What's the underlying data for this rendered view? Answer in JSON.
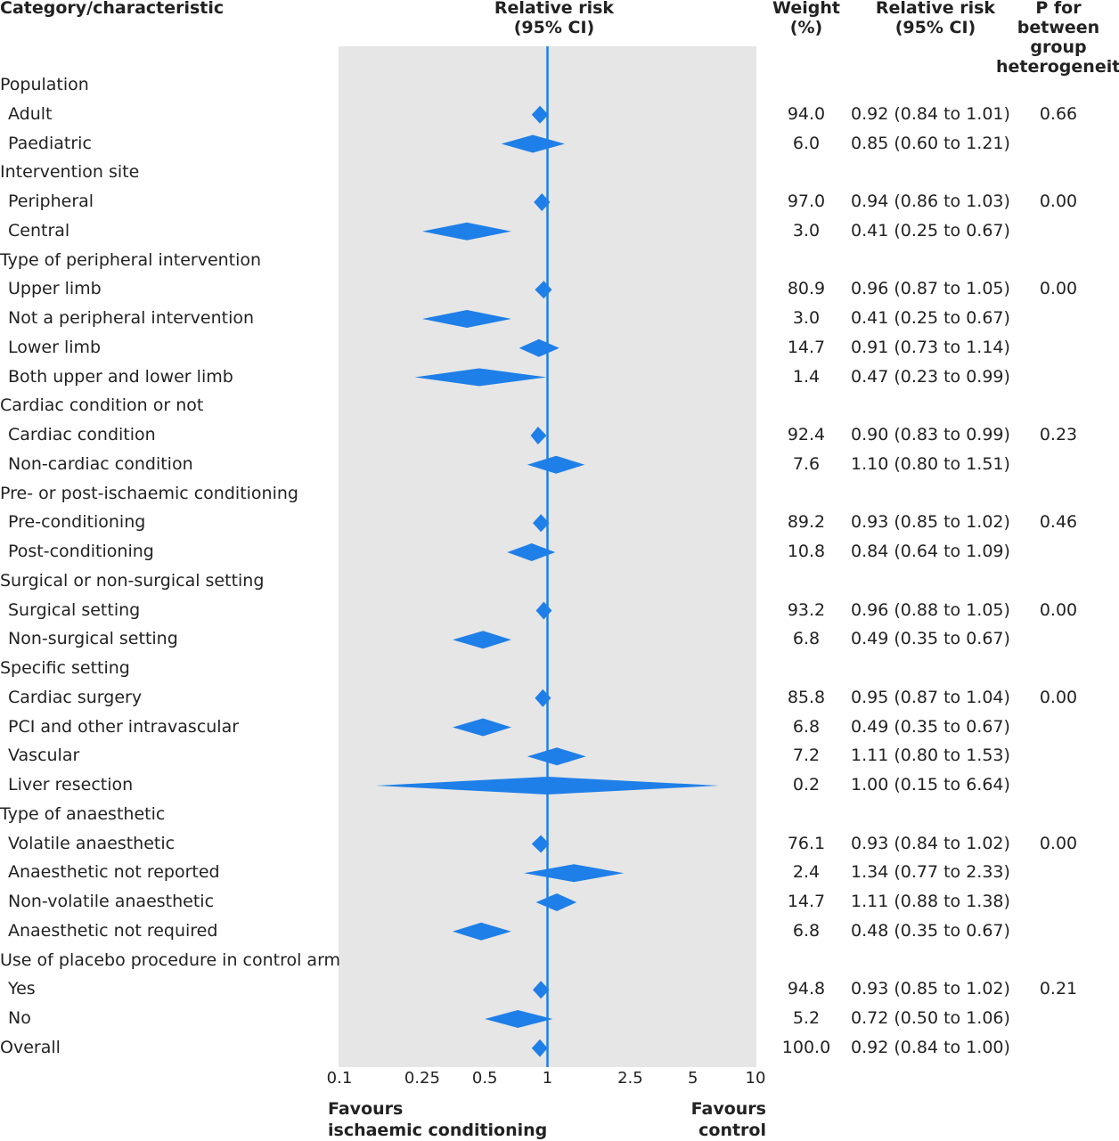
{
  "headers": {
    "category": "Category/characteristic",
    "rr_plot": [
      "Relative risk",
      "(95% CI)"
    ],
    "weight": [
      "Weight",
      "(%)"
    ],
    "rr_col": [
      "Relative risk",
      "(95% CI)"
    ],
    "p_het": [
      "P for",
      "between group",
      "heterogeneity"
    ]
  },
  "colors": {
    "diamond": "#1f7fe8",
    "reference_line": "#1f7fe8",
    "plot_background": "#e6e6e6",
    "text": "#222222"
  },
  "axis": {
    "scale": "log",
    "ticks": [
      "0.1",
      "0.25",
      "0.5",
      "1",
      "2.5",
      "5",
      "10"
    ],
    "favours_left": [
      "Favours",
      "ischaemic conditioning"
    ],
    "favours_right": [
      "Favours",
      "control"
    ]
  },
  "rows": [
    {
      "type": "group",
      "label": "Population"
    },
    {
      "type": "item",
      "label": "Adult",
      "weight": "94.0",
      "rr_text": "0.92 (0.84 to 1.01)",
      "p": "0.66"
    },
    {
      "type": "item",
      "label": "Paediatric",
      "weight": "6.0",
      "rr_text": "0.85 (0.60 to 1.21)",
      "p": ""
    },
    {
      "type": "group",
      "label": "Intervention site"
    },
    {
      "type": "item",
      "label": "Peripheral",
      "weight": "97.0",
      "rr_text": "0.94 (0.86 to 1.03)",
      "p": "0.00"
    },
    {
      "type": "item",
      "label": "Central",
      "weight": "3.0",
      "rr_text": "0.41 (0.25 to 0.67)",
      "p": ""
    },
    {
      "type": "group",
      "label": "Type of peripheral intervention"
    },
    {
      "type": "item",
      "label": "Upper limb",
      "weight": "80.9",
      "rr_text": "0.96 (0.87 to 1.05)",
      "p": "0.00"
    },
    {
      "type": "item",
      "label": "Not a peripheral intervention",
      "weight": "3.0",
      "rr_text": "0.41 (0.25 to 0.67)",
      "p": ""
    },
    {
      "type": "item",
      "label": "Lower limb",
      "weight": "14.7",
      "rr_text": "0.91 (0.73 to 1.14)",
      "p": ""
    },
    {
      "type": "item",
      "label": "Both upper and lower limb",
      "weight": "1.4",
      "rr_text": "0.47 (0.23 to 0.99)",
      "p": ""
    },
    {
      "type": "group",
      "label": "Cardiac condition or not"
    },
    {
      "type": "item",
      "label": "Cardiac condition",
      "weight": "92.4",
      "rr_text": "0.90 (0.83 to 0.99)",
      "p": "0.23"
    },
    {
      "type": "item",
      "label": "Non-cardiac condition",
      "weight": "7.6",
      "rr_text": "1.10 (0.80 to 1.51)",
      "p": ""
    },
    {
      "type": "group",
      "label": "Pre- or post-ischaemic conditioning"
    },
    {
      "type": "item",
      "label": "Pre-conditioning",
      "weight": "89.2",
      "rr_text": "0.93 (0.85 to 1.02)",
      "p": "0.46"
    },
    {
      "type": "item",
      "label": "Post-conditioning",
      "weight": "10.8",
      "rr_text": "0.84 (0.64 to 1.09)",
      "p": ""
    },
    {
      "type": "group",
      "label": "Surgical or non-surgical setting"
    },
    {
      "type": "item",
      "label": "Surgical setting",
      "weight": "93.2",
      "rr_text": "0.96 (0.88 to 1.05)",
      "p": "0.00"
    },
    {
      "type": "item",
      "label": "Non-surgical setting",
      "weight": "6.8",
      "rr_text": "0.49 (0.35 to 0.67)",
      "p": ""
    },
    {
      "type": "group",
      "label": "Specific setting"
    },
    {
      "type": "item",
      "label": "Cardiac surgery",
      "weight": "85.8",
      "rr_text": "0.95 (0.87 to 1.04)",
      "p": "0.00"
    },
    {
      "type": "item",
      "label": "PCI and other intravascular",
      "weight": "6.8",
      "rr_text": "0.49 (0.35 to 0.67)",
      "p": ""
    },
    {
      "type": "item",
      "label": "Vascular",
      "weight": "7.2",
      "rr_text": "1.11 (0.80 to 1.53)",
      "p": ""
    },
    {
      "type": "item",
      "label": "Liver resection",
      "weight": "0.2",
      "rr_text": "1.00 (0.15 to 6.64)",
      "p": ""
    },
    {
      "type": "group",
      "label": "Type of anaesthetic"
    },
    {
      "type": "item",
      "label": "Volatile anaesthetic",
      "weight": "76.1",
      "rr_text": "0.93 (0.84 to 1.02)",
      "p": "0.00"
    },
    {
      "type": "item",
      "label": "Anaesthetic not reported",
      "weight": "2.4",
      "rr_text": "1.34 (0.77 to 2.33)",
      "p": ""
    },
    {
      "type": "item",
      "label": "Non-volatile anaesthetic",
      "weight": "14.7",
      "rr_text": "1.11 (0.88 to 1.38)",
      "p": ""
    },
    {
      "type": "item",
      "label": "Anaesthetic not required",
      "weight": "6.8",
      "rr_text": "0.48 (0.35 to 0.67)",
      "p": ""
    },
    {
      "type": "group",
      "label": "Use of placebo procedure in control arm"
    },
    {
      "type": "item",
      "label": "Yes",
      "weight": "94.8",
      "rr_text": "0.93 (0.85 to 1.02)",
      "p": "0.21"
    },
    {
      "type": "item",
      "label": "No",
      "weight": "5.2",
      "rr_text": "0.72 (0.50 to 1.06)",
      "p": ""
    },
    {
      "type": "overall",
      "label": "Overall",
      "weight": "100.0",
      "rr_text": "0.92 (0.84 to 1.00)",
      "p": ""
    }
  ],
  "chart_data": {
    "type": "forest",
    "x_scale": "log",
    "xlim": [
      0.1,
      10
    ],
    "reference_value": 1,
    "x_ticks": [
      0.1,
      0.25,
      0.5,
      1,
      2.5,
      5,
      10
    ],
    "grid": false,
    "estimates": [
      {
        "label": "Adult",
        "rr": 0.92,
        "lo": 0.84,
        "hi": 1.01
      },
      {
        "label": "Paediatric",
        "rr": 0.85,
        "lo": 0.6,
        "hi": 1.21
      },
      {
        "label": "Peripheral",
        "rr": 0.94,
        "lo": 0.86,
        "hi": 1.03
      },
      {
        "label": "Central",
        "rr": 0.41,
        "lo": 0.25,
        "hi": 0.67
      },
      {
        "label": "Upper limb",
        "rr": 0.96,
        "lo": 0.87,
        "hi": 1.05
      },
      {
        "label": "Not a peripheral intervention",
        "rr": 0.41,
        "lo": 0.25,
        "hi": 0.67
      },
      {
        "label": "Lower limb",
        "rr": 0.91,
        "lo": 0.73,
        "hi": 1.14
      },
      {
        "label": "Both upper and lower limb",
        "rr": 0.47,
        "lo": 0.23,
        "hi": 0.99
      },
      {
        "label": "Cardiac condition",
        "rr": 0.9,
        "lo": 0.83,
        "hi": 0.99
      },
      {
        "label": "Non-cardiac condition",
        "rr": 1.1,
        "lo": 0.8,
        "hi": 1.51
      },
      {
        "label": "Pre-conditioning",
        "rr": 0.93,
        "lo": 0.85,
        "hi": 1.02
      },
      {
        "label": "Post-conditioning",
        "rr": 0.84,
        "lo": 0.64,
        "hi": 1.09
      },
      {
        "label": "Surgical setting",
        "rr": 0.96,
        "lo": 0.88,
        "hi": 1.05
      },
      {
        "label": "Non-surgical setting",
        "rr": 0.49,
        "lo": 0.35,
        "hi": 0.67
      },
      {
        "label": "Cardiac surgery",
        "rr": 0.95,
        "lo": 0.87,
        "hi": 1.04
      },
      {
        "label": "PCI and other intravascular",
        "rr": 0.49,
        "lo": 0.35,
        "hi": 0.67
      },
      {
        "label": "Vascular",
        "rr": 1.11,
        "lo": 0.8,
        "hi": 1.53
      },
      {
        "label": "Liver resection",
        "rr": 1.0,
        "lo": 0.15,
        "hi": 6.64
      },
      {
        "label": "Volatile anaesthetic",
        "rr": 0.93,
        "lo": 0.84,
        "hi": 1.02
      },
      {
        "label": "Anaesthetic not reported",
        "rr": 1.34,
        "lo": 0.77,
        "hi": 2.33
      },
      {
        "label": "Non-volatile anaesthetic",
        "rr": 1.11,
        "lo": 0.88,
        "hi": 1.38
      },
      {
        "label": "Anaesthetic not required",
        "rr": 0.48,
        "lo": 0.35,
        "hi": 0.67
      },
      {
        "label": "Yes",
        "rr": 0.93,
        "lo": 0.85,
        "hi": 1.02
      },
      {
        "label": "No",
        "rr": 0.72,
        "lo": 0.5,
        "hi": 1.06
      },
      {
        "label": "Overall",
        "rr": 0.92,
        "lo": 0.84,
        "hi": 1.0
      }
    ]
  }
}
